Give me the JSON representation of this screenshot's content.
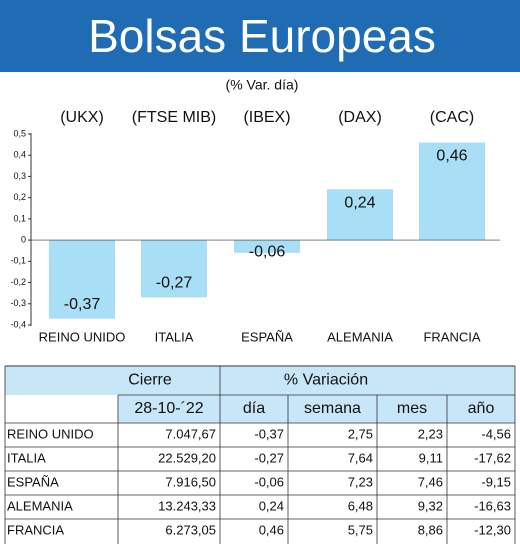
{
  "chart_data": {
    "type": "bar",
    "title": "Bolsas Europeas",
    "subtitle": "(% Var. día)",
    "indices": [
      "(UKX)",
      "(FTSE MIB)",
      "(IBEX)",
      "(DAX)",
      "(CAC)"
    ],
    "categories": [
      "REINO UNIDO",
      "ITALIA",
      "ESPAÑA",
      "ALEMANIA",
      "FRANCIA"
    ],
    "values": [
      -0.37,
      -0.27,
      -0.06,
      0.24,
      0.46
    ],
    "value_labels": [
      "-0,37",
      "-0,27",
      "-0,06",
      "0,24",
      "0,46"
    ],
    "color": "#a9def7",
    "ylim": [
      -0.4,
      0.5
    ],
    "yticks": [
      {
        "value": 0.5,
        "label": "0,5"
      },
      {
        "value": 0.4,
        "label": "0,4"
      },
      {
        "value": 0.3,
        "label": "0,3"
      },
      {
        "value": 0.2,
        "label": "0,2"
      },
      {
        "value": 0.1,
        "label": "0,1"
      },
      0,
      {
        "value": -0.1,
        "label": "-0,1"
      },
      {
        "value": -0.2,
        "label": "-0,2"
      },
      {
        "value": -0.3,
        "label": "-0,3"
      },
      {
        "value": -0.4,
        "label": "-0,4"
      }
    ]
  },
  "table": {
    "header": {
      "cierre": "Cierre",
      "variacion": "% Variación",
      "date": "28-10-´22",
      "columns": [
        "día",
        "semana",
        "mes",
        "año"
      ]
    },
    "rows": [
      [
        "REINO UNIDO",
        "7.047,67",
        "-0,37",
        "2,75",
        "2,23",
        "-4,56"
      ],
      [
        "ITALIA",
        "22.529,20",
        "-0,27",
        "7,64",
        "9,11",
        "-17,62"
      ],
      [
        "ESPAÑA",
        "7.916,50",
        "-0,06",
        "7,23",
        "7,46",
        "-9,15"
      ],
      [
        "ALEMANIA",
        "13.243,33",
        "0,24",
        "6,48",
        "9,32",
        "-16,63"
      ],
      [
        "FRANCIA",
        "6.273,05",
        "0,46",
        "5,75",
        "8,86",
        "-12,30"
      ]
    ]
  }
}
